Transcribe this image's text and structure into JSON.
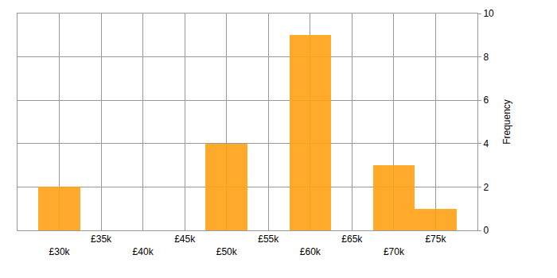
{
  "chart_data": {
    "type": "histogram",
    "bins": [
      27500,
      32500,
      37500,
      42500,
      47500,
      52500,
      57500,
      62500,
      67500,
      72500,
      77500
    ],
    "values": [
      2,
      0,
      0,
      0,
      4,
      0,
      9,
      0,
      3,
      1
    ],
    "color": "#ffa31a",
    "xlim": [
      25000,
      80000
    ],
    "xticks": [
      {
        "value": 30000,
        "label": "£30k"
      },
      {
        "value": 35000,
        "label": "£35k"
      },
      {
        "value": 40000,
        "label": "£40k"
      },
      {
        "value": 45000,
        "label": "£45k"
      },
      {
        "value": 50000,
        "label": "£50k"
      },
      {
        "value": 55000,
        "label": "£55k"
      },
      {
        "value": 60000,
        "label": "£60k"
      },
      {
        "value": 65000,
        "label": "£65k"
      },
      {
        "value": 70000,
        "label": "£70k"
      },
      {
        "value": 75000,
        "label": "£75k"
      }
    ],
    "ylim": [
      0,
      10
    ],
    "yticks": [
      0,
      2,
      4,
      6,
      8,
      10
    ],
    "y_label": "Frequency",
    "grid": true
  }
}
